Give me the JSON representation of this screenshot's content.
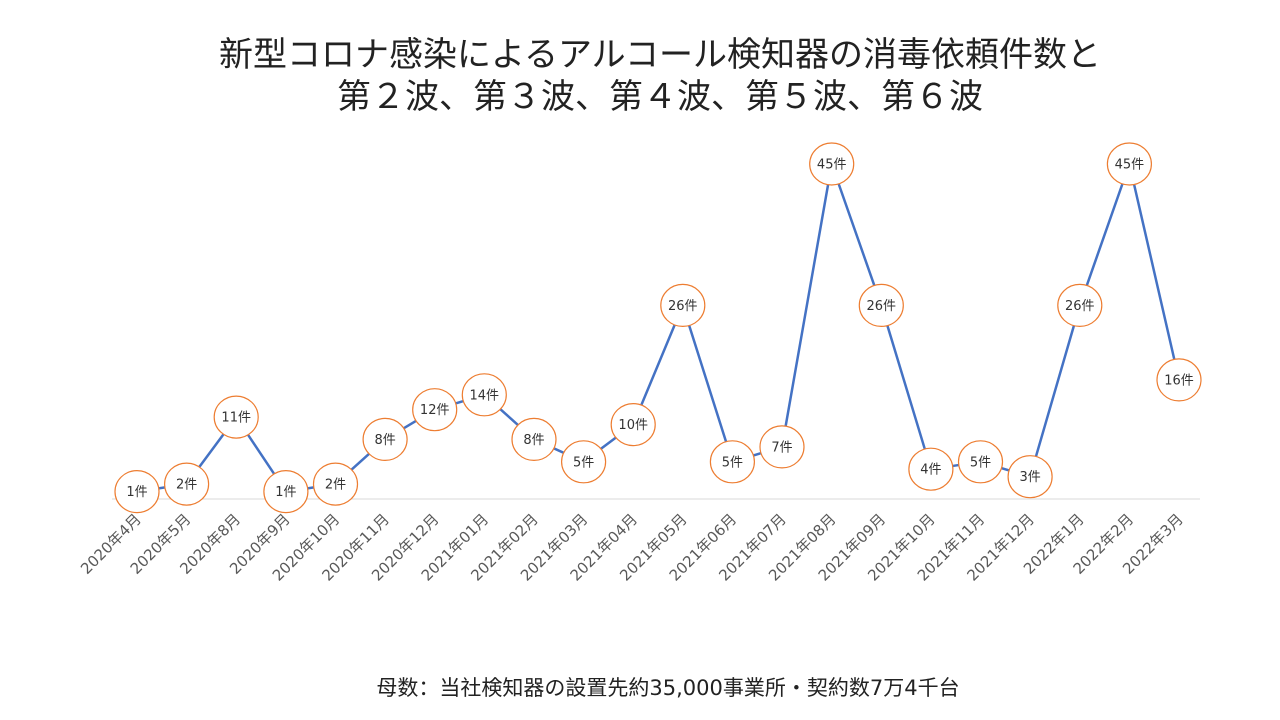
{
  "chart_data": {
    "type": "line",
    "title_lines": [
      "新型コロナ感染によるアルコール検知器の消毒依頼件数と",
      "第２波、第３波、第４波、第５波、第６波"
    ],
    "footnote": "母数：当社検知器の設置先約35,000事業所・契約数7万4千台",
    "categories": [
      "2020年4月",
      "2020年5月",
      "2020年8月",
      "2020年9月",
      "2020年10月",
      "2020年11月",
      "2020年12月",
      "2021年01月",
      "2021年02月",
      "2021年03月",
      "2021年04月",
      "2021年05月",
      "2021年06月",
      "2021年07月",
      "2021年08月",
      "2021年09月",
      "2021年10月",
      "2021年11月",
      "2021年12月",
      "2022年1月",
      "2022年2月",
      "2022年3月"
    ],
    "values": [
      1,
      2,
      11,
      1,
      2,
      8,
      12,
      14,
      8,
      5,
      10,
      26,
      5,
      7,
      45,
      26,
      4,
      5,
      3,
      26,
      45,
      16
    ],
    "data_labels": [
      "1件",
      "2件",
      "11件",
      "1件",
      "2件",
      "8件",
      "12件",
      "14件",
      "8件",
      "5件",
      "10件",
      "26件",
      "5件",
      "7件",
      "45件",
      "26件",
      "4件",
      "5件",
      "3件",
      "26件",
      "45件",
      "16件"
    ],
    "ylim": [
      0,
      45
    ],
    "grid": false,
    "legend": "none",
    "colors": {
      "line": "#4472C4",
      "label_border": "#ED7D31",
      "baseline": "#D9D9D9"
    }
  }
}
